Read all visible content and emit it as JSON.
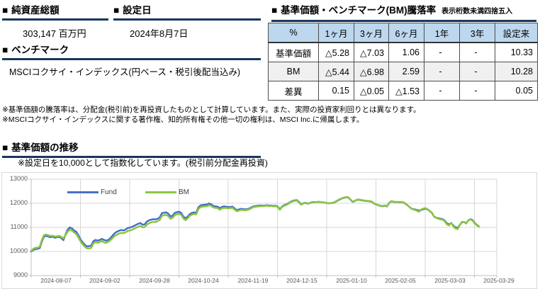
{
  "sections": {
    "net_assets": {
      "marker": "■",
      "title": "純資産総額",
      "value": "303,147 百万円"
    },
    "inception": {
      "marker": "■",
      "title": "設定日",
      "value": "2024年8月7日"
    },
    "benchmark": {
      "marker": "■",
      "title": "ベンチマーク",
      "value": "MSCIコクサイ・インデックス(円ベース・税引後配当込み)"
    },
    "performance": {
      "marker": "■",
      "title": "基準価額・ベンチマーク(BM)騰落率",
      "small_note": "表示桁数未満四捨五入",
      "table": {
        "headers": [
          "%",
          "1ヶ月",
          "3ヶ月",
          "6ヶ月",
          "1年",
          "3年",
          "設定来"
        ],
        "rows": [
          {
            "label": "基準価額",
            "values": [
              "△5.28",
              "△7.03",
              "1.06",
              "-",
              "-",
              "10.33"
            ]
          },
          {
            "label": "BM",
            "values": [
              "△5.44",
              "△6.98",
              "2.59",
              "-",
              "-",
              "10.28"
            ]
          },
          {
            "label": "差異",
            "values": [
              "0.15",
              "△0.05",
              "△1.53",
              "-",
              "-",
              "0.05"
            ]
          }
        ]
      }
    },
    "notes": [
      "※基準価額の騰落率は、分配金(税引前)を再投資したものとして計算しています。また、実際の投資家利回りとは異なります。",
      "※MSCIコクサイ・インデックスに関する著作権、知的所有権その他一切の権利は、MSCI Inc.に帰属します。"
    ],
    "nav_chart": {
      "marker": "■",
      "title": "基準価額の推移",
      "note": "※設定日を10,000として指数化しています。(税引前分配金再投資)"
    }
  },
  "colors": {
    "header_rule": "#17375E",
    "table_header_bg": "#BDD7EE",
    "fund_line": "#4472C4",
    "bm_line": "#8CC540"
  },
  "chart_data": {
    "type": "line",
    "title": "基準価額の推移",
    "note": "設定日を10,000として指数化",
    "ylim": [
      9000,
      13000
    ],
    "y_tick_labels": [
      "13000",
      "12000",
      "11000",
      "10000",
      "9000"
    ],
    "grid": true,
    "legend_position": "top-inside",
    "x_labels": [
      "2024-08-07",
      "2024-09-02",
      "2024-09-28",
      "2024-10-24",
      "2024-11-19",
      "2024-12-15",
      "2025-01-10",
      "2025-02-05",
      "2025-03-03",
      "2025-03-29"
    ],
    "series": [
      {
        "name": "Fund",
        "color": "#4472C4",
        "values": [
          10000,
          10060,
          10100,
          10110,
          10140,
          10420,
          10620,
          10650,
          10620,
          10590,
          10620,
          10570,
          10590,
          10610,
          10560,
          10470,
          10700,
          10900,
          11000,
          10960,
          10870,
          10820,
          10680,
          10500,
          10380,
          10280,
          10210,
          10220,
          10240,
          10420,
          10480,
          10450,
          10480,
          10520,
          10480,
          10450,
          10480,
          10560,
          10660,
          10760,
          10820,
          10860,
          10890,
          10870,
          10910,
          10970,
          10990,
          11020,
          11060,
          11110,
          11150,
          11180,
          11110,
          11130,
          11240,
          11290,
          11320,
          11340,
          11330,
          11360,
          11410,
          11590,
          11610,
          11620,
          11570,
          11450,
          11490,
          11600,
          11630,
          11650,
          11600,
          11450,
          11380,
          11440,
          11550,
          11600,
          11620,
          11600,
          11830,
          11910,
          11930,
          11940,
          11950,
          11990,
          11960,
          11890,
          11870,
          11860,
          11790,
          11850,
          11870,
          11860,
          11840,
          11850,
          11860,
          11780,
          11720,
          11750,
          11770,
          11760,
          11750,
          11760,
          11790,
          11840,
          11880,
          11890,
          11900,
          11910,
          11900,
          11910,
          11920,
          11900,
          11910,
          11890,
          11900,
          11870,
          11750,
          11860,
          11920,
          11950,
          12000,
          12060,
          12100,
          12120,
          12130,
          12050,
          11960,
          12000,
          12020,
          11990,
          12010,
          12040,
          12050,
          12050,
          12060,
          12050,
          12040,
          12030,
          12010,
          12000,
          12010,
          12020,
          12060,
          12110,
          12160,
          12200,
          12230,
          12250,
          12240,
          12150,
          12060,
          12090,
          12140,
          12150,
          12130,
          12110,
          12100,
          12090,
          12080,
          12060,
          11990,
          11950,
          11920,
          11890,
          11880,
          11900,
          11870,
          12010,
          12080,
          12060,
          12050,
          12050,
          12040,
          12050,
          12020,
          11960,
          11890,
          11810,
          11760,
          11750,
          11720,
          11700,
          11720,
          11750,
          11780,
          11740,
          11680,
          11600,
          11450,
          11400,
          11380,
          11360,
          11340,
          11280,
          11170,
          11120,
          11180,
          11080,
          11000,
          10980,
          11100,
          11220,
          11230,
          11170,
          11290,
          11340,
          11300,
          11180,
          11100,
          11033
        ]
      },
      {
        "name": "BM",
        "color": "#8CC540",
        "values": [
          10020,
          10110,
          10150,
          10160,
          10200,
          10480,
          10680,
          10700,
          10670,
          10640,
          10660,
          10620,
          10630,
          10650,
          10610,
          10540,
          10680,
          10820,
          10900,
          10870,
          10790,
          10730,
          10590,
          10420,
          10300,
          10200,
          10130,
          10120,
          10150,
          10330,
          10390,
          10360,
          10390,
          10430,
          10380,
          10360,
          10400,
          10470,
          10560,
          10650,
          10700,
          10740,
          10770,
          10760,
          10790,
          10850,
          10870,
          10900,
          10940,
          10990,
          11030,
          11060,
          11000,
          11020,
          11120,
          11170,
          11210,
          11230,
          11220,
          11260,
          11310,
          11480,
          11510,
          11520,
          11470,
          11360,
          11400,
          11510,
          11540,
          11560,
          11520,
          11370,
          11300,
          11370,
          11480,
          11530,
          11560,
          11540,
          11760,
          11840,
          11860,
          11870,
          11880,
          11920,
          11890,
          11830,
          11810,
          11800,
          11730,
          11790,
          11810,
          11800,
          11790,
          11800,
          11810,
          11730,
          11670,
          11700,
          11730,
          11720,
          11710,
          11730,
          11760,
          11810,
          11850,
          11860,
          11870,
          11880,
          11880,
          11890,
          11900,
          11880,
          11890,
          11870,
          11880,
          11850,
          11730,
          11840,
          11900,
          11930,
          11980,
          12040,
          12080,
          12100,
          12110,
          12030,
          11940,
          11990,
          12010,
          11980,
          12000,
          12030,
          12040,
          12050,
          12060,
          12050,
          12040,
          12030,
          12010,
          12000,
          12010,
          12030,
          12070,
          12120,
          12170,
          12210,
          12240,
          12260,
          12250,
          12160,
          12070,
          12100,
          12150,
          12160,
          12140,
          12120,
          12110,
          12100,
          12090,
          12070,
          12000,
          11960,
          11930,
          11900,
          11890,
          11910,
          11880,
          12020,
          12090,
          12070,
          12060,
          12060,
          12050,
          12060,
          12030,
          11970,
          11890,
          11800,
          11750,
          11730,
          11690,
          11650,
          11740,
          11780,
          11800,
          11750,
          11690,
          11610,
          11440,
          11390,
          11360,
          11330,
          11320,
          11250,
          11130,
          11080,
          11190,
          11040,
          10950,
          10930,
          11090,
          11210,
          11230,
          11160,
          11300,
          11330,
          11280,
          11160,
          11080,
          11028
        ]
      }
    ]
  }
}
